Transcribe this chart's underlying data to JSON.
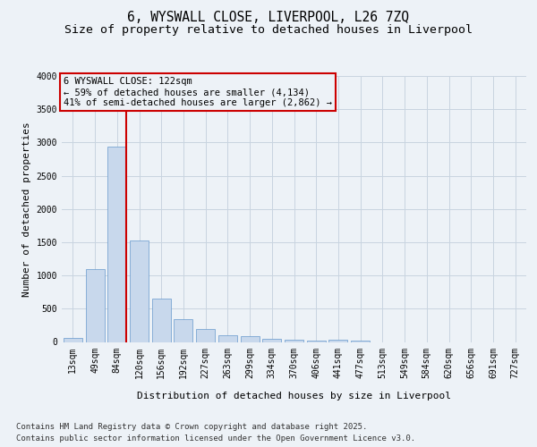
{
  "title1": "6, WYSWALL CLOSE, LIVERPOOL, L26 7ZQ",
  "title2": "Size of property relative to detached houses in Liverpool",
  "xlabel": "Distribution of detached houses by size in Liverpool",
  "ylabel": "Number of detached properties",
  "categories": [
    "13sqm",
    "49sqm",
    "84sqm",
    "120sqm",
    "156sqm",
    "192sqm",
    "227sqm",
    "263sqm",
    "299sqm",
    "334sqm",
    "370sqm",
    "406sqm",
    "441sqm",
    "477sqm",
    "513sqm",
    "549sqm",
    "584sqm",
    "620sqm",
    "656sqm",
    "691sqm",
    "727sqm"
  ],
  "values": [
    55,
    1100,
    2940,
    1530,
    650,
    340,
    195,
    95,
    85,
    50,
    30,
    25,
    35,
    15,
    0,
    0,
    0,
    0,
    0,
    0,
    0
  ],
  "bar_color": "#c8d8ec",
  "bar_edge_color": "#6699cc",
  "vline_after_index": 2,
  "vline_color": "#cc0000",
  "annotation_line1": "6 WYSWALL CLOSE: 122sqm",
  "annotation_line2": "← 59% of detached houses are smaller (4,134)",
  "annotation_line3": "41% of semi-detached houses are larger (2,862) →",
  "annotation_box_edgecolor": "#cc0000",
  "ylim_max": 4000,
  "yticks": [
    0,
    500,
    1000,
    1500,
    2000,
    2500,
    3000,
    3500,
    4000
  ],
  "footer_line1": "Contains HM Land Registry data © Crown copyright and database right 2025.",
  "footer_line2": "Contains public sector information licensed under the Open Government Licence v3.0.",
  "bg_color": "#edf2f7",
  "grid_color": "#c8d4e0",
  "title_fontsize": 10.5,
  "subtitle_fontsize": 9.5,
  "axis_label_fontsize": 8,
  "tick_fontsize": 7,
  "footer_fontsize": 6.5,
  "annotation_fontsize": 7.5
}
